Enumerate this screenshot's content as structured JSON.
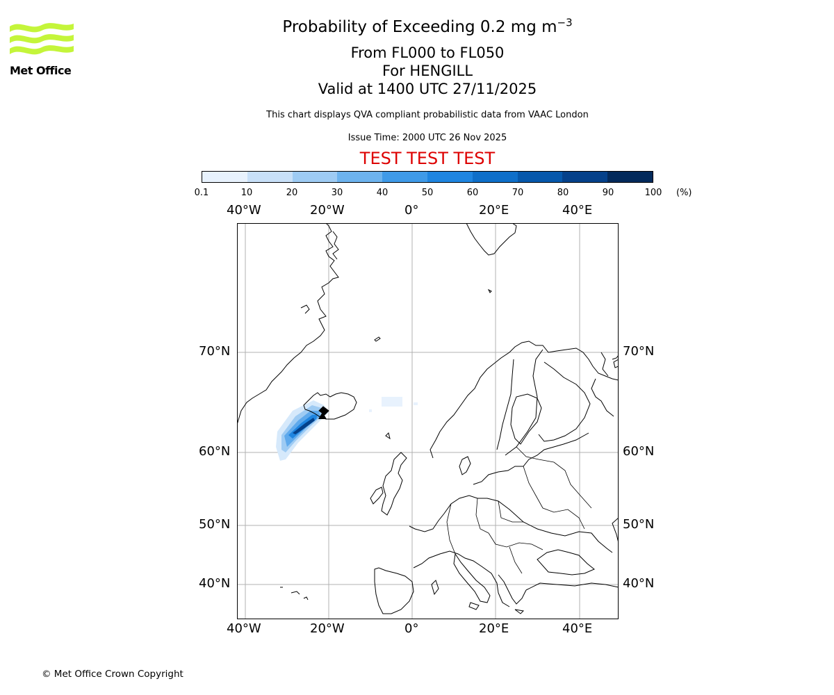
{
  "logo": {
    "text": "Met Office",
    "accent_color": "#c4f53a"
  },
  "header": {
    "title_main": "Probability of Exceeding 0.2 mg m",
    "title_sup": "−3",
    "level_range": "From FL000 to FL050",
    "volcano": "For HENGILL",
    "valid_time": "Valid at 1400 UTC 27/11/2025",
    "note": "This chart displays QVA compliant probabilistic data from VAAC London",
    "issue_time": "Issue Time: 2000 UTC 26 Nov 2025",
    "test_banner": "TEST TEST TEST",
    "test_color": "#dd0000"
  },
  "colorbar": {
    "ticks": [
      "0.1",
      "10",
      "20",
      "30",
      "40",
      "50",
      "60",
      "70",
      "80",
      "90",
      "100"
    ],
    "unit": "(%)",
    "colors": [
      "#e8f2fd",
      "#c8e0f8",
      "#9ecbf3",
      "#6db3ee",
      "#3f9ae8",
      "#1f85e0",
      "#0f6fc9",
      "#0658ab",
      "#05418a",
      "#032a5b"
    ]
  },
  "map": {
    "lon_labels": [
      "40°W",
      "20°W",
      "0°",
      "20°E",
      "40°E"
    ],
    "lat_labels": [
      "70°N",
      "60°N",
      "50°N",
      "40°N"
    ],
    "volcano_marker": "Hengill"
  },
  "footer": {
    "copyright": "© Met Office Crown Copyright"
  }
}
